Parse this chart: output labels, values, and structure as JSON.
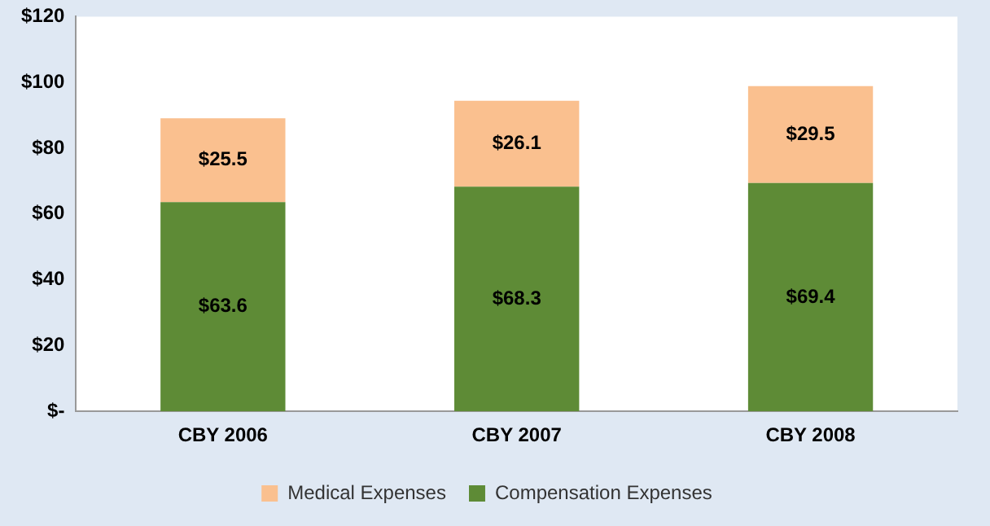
{
  "chart_data": {
    "type": "bar",
    "stacked": true,
    "categories": [
      "CBY 2006",
      "CBY 2007",
      "CBY 2008"
    ],
    "series": [
      {
        "name": "Compensation Expenses",
        "color": "#5e8b36",
        "values": [
          63.6,
          68.3,
          69.4
        ],
        "value_labels": [
          "$63.6",
          "$68.3",
          "$69.4"
        ]
      },
      {
        "name": "Medical Expenses",
        "color": "#fac08f",
        "values": [
          25.5,
          26.1,
          29.5
        ],
        "value_labels": [
          "$25.5",
          "$26.1",
          "$29.5"
        ]
      }
    ],
    "ylim": [
      0,
      120
    ],
    "yticks": [
      {
        "value": 0,
        "label": "$-"
      },
      {
        "value": 20,
        "label": "$20"
      },
      {
        "value": 40,
        "label": "$40"
      },
      {
        "value": 60,
        "label": "$60"
      },
      {
        "value": 80,
        "label": "$80"
      },
      {
        "value": 100,
        "label": "$100"
      },
      {
        "value": 120,
        "label": "$120"
      }
    ],
    "grid": false,
    "legend": "bottom"
  }
}
